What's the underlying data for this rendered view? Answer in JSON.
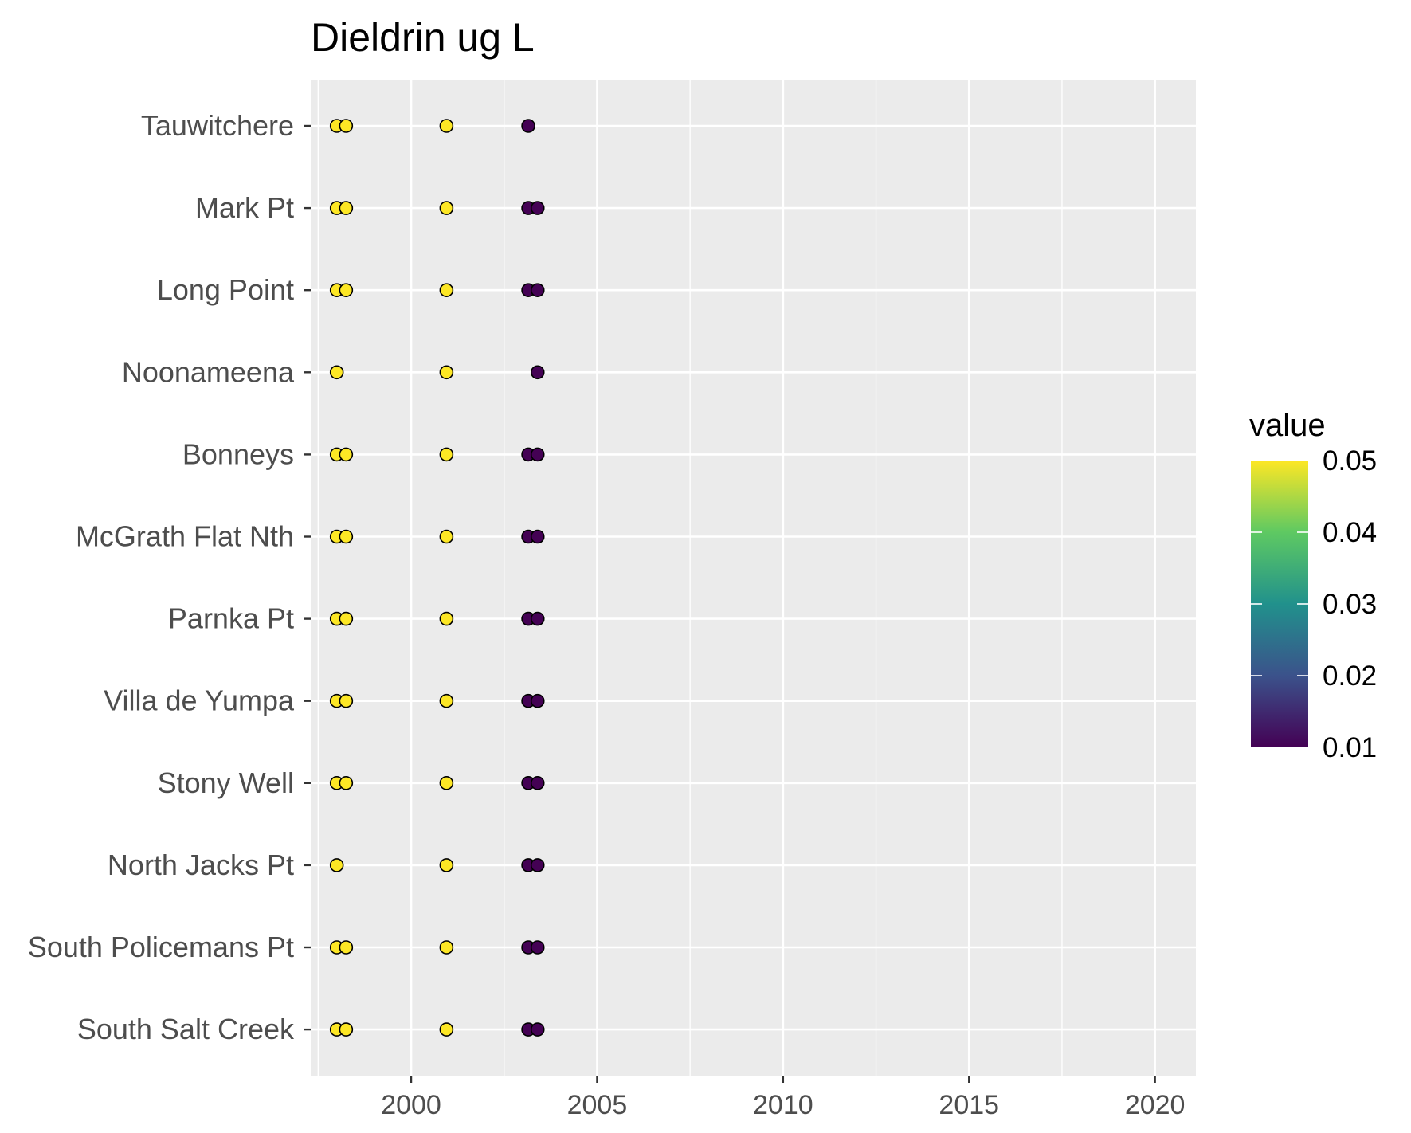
{
  "chart_data": {
    "type": "scatter",
    "title": "Dieldrin ug L",
    "xlabel": "",
    "ylabel": "",
    "xlim": [
      1997.3,
      2021.1
    ],
    "x_ticks": [
      2000,
      2005,
      2010,
      2015,
      2020
    ],
    "x_tick_labels": [
      "2000",
      "2005",
      "2010",
      "2015",
      "2020"
    ],
    "categories": [
      "Tauwitchere",
      "Mark Pt",
      "Long Point",
      "Noonameena",
      "Bonneys",
      "McGrath Flat Nth",
      "Parnka Pt",
      "Villa de Yumpa",
      "Stony Well",
      "North Jacks Pt",
      "South Policemans Pt",
      "South Salt Creek"
    ],
    "grid": true,
    "legend": {
      "title": "value",
      "placement": "right",
      "type": "colorbar",
      "range": [
        0.01,
        0.05
      ],
      "ticks": [
        0.01,
        0.02,
        0.03,
        0.04,
        0.05
      ],
      "tick_labels": [
        "0.01",
        "0.02",
        "0.03",
        "0.04",
        "0.05"
      ],
      "colormap": [
        "#440154",
        "#3b528b",
        "#21918c",
        "#5ec962",
        "#fde725"
      ]
    },
    "points": [
      {
        "site": "Tauwitchere",
        "x": 1998.0,
        "value": 0.05
      },
      {
        "site": "Tauwitchere",
        "x": 1998.25,
        "value": 0.05
      },
      {
        "site": "Tauwitchere",
        "x": 2000.95,
        "value": 0.05
      },
      {
        "site": "Tauwitchere",
        "x": 2003.15,
        "value": 0.01
      },
      {
        "site": "Mark Pt",
        "x": 1998.0,
        "value": 0.05
      },
      {
        "site": "Mark Pt",
        "x": 1998.25,
        "value": 0.05
      },
      {
        "site": "Mark Pt",
        "x": 2000.95,
        "value": 0.05
      },
      {
        "site": "Mark Pt",
        "x": 2003.15,
        "value": 0.01
      },
      {
        "site": "Mark Pt",
        "x": 2003.4,
        "value": 0.01
      },
      {
        "site": "Long Point",
        "x": 1998.0,
        "value": 0.05
      },
      {
        "site": "Long Point",
        "x": 1998.25,
        "value": 0.05
      },
      {
        "site": "Long Point",
        "x": 2000.95,
        "value": 0.05
      },
      {
        "site": "Long Point",
        "x": 2003.15,
        "value": 0.01
      },
      {
        "site": "Long Point",
        "x": 2003.4,
        "value": 0.01
      },
      {
        "site": "Noonameena",
        "x": 1998.0,
        "value": 0.05
      },
      {
        "site": "Noonameena",
        "x": 2000.95,
        "value": 0.05
      },
      {
        "site": "Noonameena",
        "x": 2003.4,
        "value": 0.01
      },
      {
        "site": "Bonneys",
        "x": 1998.0,
        "value": 0.05
      },
      {
        "site": "Bonneys",
        "x": 1998.25,
        "value": 0.05
      },
      {
        "site": "Bonneys",
        "x": 2000.95,
        "value": 0.05
      },
      {
        "site": "Bonneys",
        "x": 2003.15,
        "value": 0.01
      },
      {
        "site": "Bonneys",
        "x": 2003.4,
        "value": 0.01
      },
      {
        "site": "McGrath Flat Nth",
        "x": 1998.0,
        "value": 0.05
      },
      {
        "site": "McGrath Flat Nth",
        "x": 1998.25,
        "value": 0.05
      },
      {
        "site": "McGrath Flat Nth",
        "x": 2000.95,
        "value": 0.05
      },
      {
        "site": "McGrath Flat Nth",
        "x": 2003.15,
        "value": 0.01
      },
      {
        "site": "McGrath Flat Nth",
        "x": 2003.4,
        "value": 0.01
      },
      {
        "site": "Parnka Pt",
        "x": 1998.0,
        "value": 0.05
      },
      {
        "site": "Parnka Pt",
        "x": 1998.25,
        "value": 0.05
      },
      {
        "site": "Parnka Pt",
        "x": 2000.95,
        "value": 0.05
      },
      {
        "site": "Parnka Pt",
        "x": 2003.15,
        "value": 0.01
      },
      {
        "site": "Parnka Pt",
        "x": 2003.4,
        "value": 0.01
      },
      {
        "site": "Villa de Yumpa",
        "x": 1998.0,
        "value": 0.05
      },
      {
        "site": "Villa de Yumpa",
        "x": 1998.25,
        "value": 0.05
      },
      {
        "site": "Villa de Yumpa",
        "x": 2000.95,
        "value": 0.05
      },
      {
        "site": "Villa de Yumpa",
        "x": 2003.15,
        "value": 0.01
      },
      {
        "site": "Villa de Yumpa",
        "x": 2003.4,
        "value": 0.01
      },
      {
        "site": "Stony Well",
        "x": 1998.0,
        "value": 0.05
      },
      {
        "site": "Stony Well",
        "x": 1998.25,
        "value": 0.05
      },
      {
        "site": "Stony Well",
        "x": 2000.95,
        "value": 0.05
      },
      {
        "site": "Stony Well",
        "x": 2003.15,
        "value": 0.01
      },
      {
        "site": "Stony Well",
        "x": 2003.4,
        "value": 0.01
      },
      {
        "site": "North Jacks Pt",
        "x": 1998.0,
        "value": 0.05
      },
      {
        "site": "North Jacks Pt",
        "x": 2000.95,
        "value": 0.05
      },
      {
        "site": "North Jacks Pt",
        "x": 2003.15,
        "value": 0.01
      },
      {
        "site": "North Jacks Pt",
        "x": 2003.4,
        "value": 0.01
      },
      {
        "site": "South Policemans Pt",
        "x": 1998.0,
        "value": 0.05
      },
      {
        "site": "South Policemans Pt",
        "x": 1998.25,
        "value": 0.05
      },
      {
        "site": "South Policemans Pt",
        "x": 2000.95,
        "value": 0.05
      },
      {
        "site": "South Policemans Pt",
        "x": 2003.15,
        "value": 0.01
      },
      {
        "site": "South Policemans Pt",
        "x": 2003.4,
        "value": 0.01
      },
      {
        "site": "South Salt Creek",
        "x": 1998.0,
        "value": 0.05
      },
      {
        "site": "South Salt Creek",
        "x": 1998.25,
        "value": 0.05
      },
      {
        "site": "South Salt Creek",
        "x": 2000.95,
        "value": 0.05
      },
      {
        "site": "South Salt Creek",
        "x": 2003.15,
        "value": 0.01
      },
      {
        "site": "South Salt Creek",
        "x": 2003.4,
        "value": 0.01
      }
    ]
  }
}
